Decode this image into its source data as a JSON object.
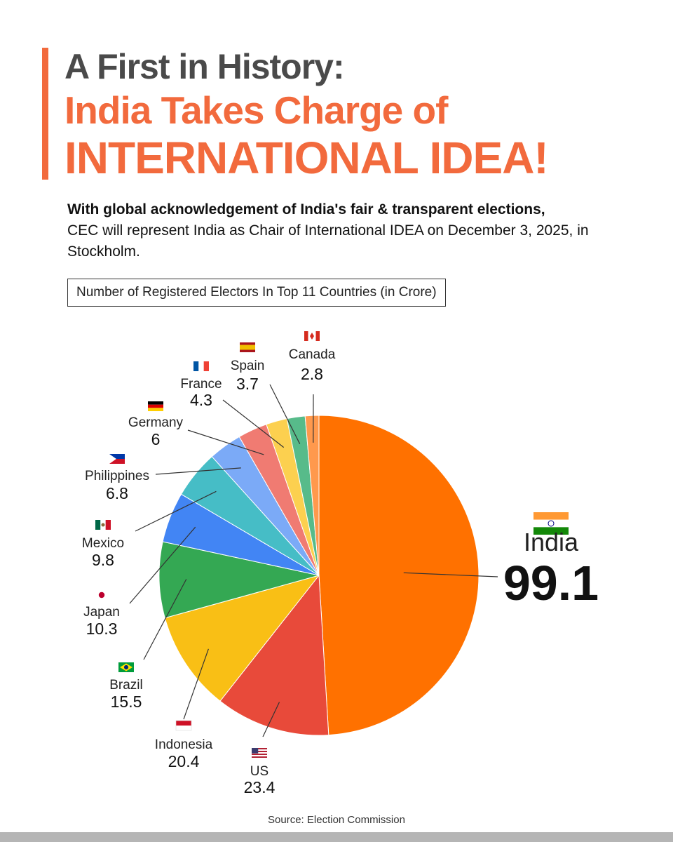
{
  "header": {
    "line1": "A First in History:",
    "line2": "India Takes Charge of",
    "line3": "INTERNATIONAL IDEA!"
  },
  "intro": {
    "bold": "With global acknowledgement of India's fair & transparent elections,",
    "rest": "CEC will represent India as Chair of International IDEA on December 3, 2025, in Stockholm."
  },
  "source": "Source: Election Commission",
  "colors": {
    "accent": "#f26a3d",
    "title_gray": "#4a4a4a"
  },
  "chart_data": {
    "type": "pie",
    "title": "Number of Registered Electors In Top 11 Countries (in Crore)",
    "start": "12 o'clock, clockwise",
    "slices": [
      {
        "label": "India",
        "value": 99.1,
        "color": "#ff7100",
        "flag": "india-flag-icon"
      },
      {
        "label": "US",
        "value": 23.4,
        "color": "#e84a3a",
        "flag": "us-flag-icon"
      },
      {
        "label": "Indonesia",
        "value": 20.4,
        "color": "#f9bf15",
        "flag": "indonesia-flag-icon"
      },
      {
        "label": "Brazil",
        "value": 15.5,
        "color": "#34a853",
        "flag": "brazil-flag-icon"
      },
      {
        "label": "Japan",
        "value": 10.3,
        "color": "#4285f4",
        "flag": "japan-flag-icon"
      },
      {
        "label": "Mexico",
        "value": 9.8,
        "color": "#46bdc6",
        "flag": "mexico-flag-icon"
      },
      {
        "label": "Philippines",
        "value": 6.8,
        "color": "#7baaf7",
        "flag": "philippines-flag-icon"
      },
      {
        "label": "Germany",
        "value": 6,
        "color": "#f07b72",
        "flag": "germany-flag-icon"
      },
      {
        "label": "France",
        "value": 4.3,
        "color": "#fcd04f",
        "flag": "france-flag-icon"
      },
      {
        "label": "Spain",
        "value": 3.7,
        "color": "#57bb8a",
        "flag": "spain-flag-icon"
      },
      {
        "label": "Canada",
        "value": 2.8,
        "color": "#ff994d",
        "flag": "canada-flag-icon"
      }
    ]
  }
}
